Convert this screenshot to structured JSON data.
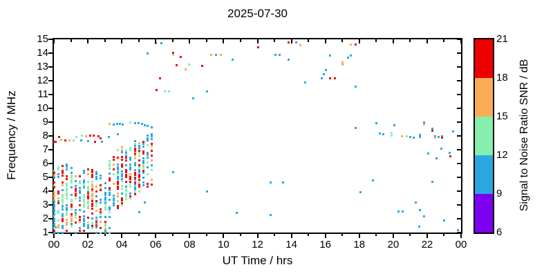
{
  "chart_data": {
    "type": "scatter",
    "title": "2025-07-30",
    "xlabel": "UT Time / hrs",
    "ylabel": "Frequency / MHz",
    "xlim": [
      0,
      24
    ],
    "ylim": [
      1,
      15
    ],
    "grid": false,
    "x_tick_values": [
      0,
      2,
      4,
      6,
      8,
      10,
      12,
      14,
      16,
      18,
      20,
      22,
      24
    ],
    "x_tick_labels": [
      "00",
      "02",
      "04",
      "06",
      "08",
      "10",
      "12",
      "14",
      "16",
      "18",
      "20",
      "22",
      "00"
    ],
    "x_minor_tick_values": [
      1,
      3,
      5,
      7,
      9,
      11,
      13,
      15,
      17,
      19,
      21,
      23
    ],
    "y_tick_values": [
      1,
      2,
      3,
      4,
      5,
      6,
      7,
      8,
      9,
      10,
      11,
      12,
      13,
      14,
      15
    ],
    "colorbar": {
      "label": "Signal to Noise Ratio SNR / dB",
      "tick_values": [
        6,
        9,
        12,
        15,
        18,
        21
      ],
      "segments": [
        {
          "snr_range": [
            6,
            9
          ],
          "color": "#7d00f0",
          "name": "purple"
        },
        {
          "snr_range": [
            9,
            12
          ],
          "color": "#29a8e0",
          "name": "blue"
        },
        {
          "snr_range": [
            12,
            15
          ],
          "color": "#86efae",
          "name": "green"
        },
        {
          "snr_range": [
            15,
            18
          ],
          "color": "#fbac55",
          "name": "orange"
        },
        {
          "snr_range": [
            18,
            21
          ],
          "color": "#ee0000",
          "name": "red"
        }
      ]
    },
    "color_key": {
      "p": "#7d00f0",
      "b": "#29a8e0",
      "g": "#86efae",
      "o": "#fbac55",
      "r": "#ee0000"
    },
    "snr_bin_centers_db": {
      "p": 7.5,
      "b": 10.5,
      "g": 13.5,
      "o": 16.5,
      "r": 19.5
    },
    "marker_px": 3,
    "points": [
      [
        0.0,
        7.6,
        "r"
      ],
      [
        0.1,
        7.6,
        "r"
      ],
      [
        0.3,
        7.95,
        "r"
      ],
      [
        0.42,
        7.75,
        "o"
      ],
      [
        0.65,
        7.72,
        "r"
      ],
      [
        0.9,
        7.7,
        "o"
      ],
      [
        1.14,
        7.7,
        "g"
      ],
      [
        1.3,
        7.95,
        "g"
      ],
      [
        1.6,
        7.72,
        "b"
      ],
      [
        1.63,
        8.05,
        "g"
      ],
      [
        1.87,
        8.0,
        "o"
      ],
      [
        2.0,
        7.65,
        "b"
      ],
      [
        2.12,
        8.05,
        "r"
      ],
      [
        2.32,
        8.05,
        "r"
      ],
      [
        2.4,
        7.6,
        "r"
      ],
      [
        2.6,
        8.0,
        "r"
      ],
      [
        2.72,
        7.85,
        "r"
      ],
      [
        2.82,
        7.62,
        "b"
      ],
      [
        3.2,
        7.95,
        "b"
      ],
      [
        3.75,
        8.15,
        "b"
      ],
      [
        3.25,
        8.9,
        "o"
      ],
      [
        3.5,
        8.85,
        "b"
      ],
      [
        3.7,
        8.9,
        "b"
      ],
      [
        3.88,
        8.9,
        "b"
      ],
      [
        4.05,
        8.85,
        "b"
      ],
      [
        4.5,
        9.0,
        "g"
      ],
      [
        4.78,
        8.95,
        "b"
      ],
      [
        4.97,
        8.95,
        "b"
      ],
      [
        5.17,
        8.9,
        "b"
      ],
      [
        5.35,
        8.8,
        "b"
      ],
      [
        5.5,
        8.75,
        "b"
      ],
      [
        5.75,
        8.65,
        "b"
      ],
      [
        5.75,
        8.15,
        "b"
      ],
      [
        5.5,
        14.0,
        "b"
      ],
      [
        6.0,
        14.75,
        "b"
      ],
      [
        6.3,
        14.75,
        "b"
      ],
      [
        6.05,
        11.35,
        "r"
      ],
      [
        6.25,
        12.2,
        "r"
      ],
      [
        6.5,
        11.25,
        "g"
      ],
      [
        6.75,
        11.25,
        "g"
      ],
      [
        7.0,
        14.05,
        "r"
      ],
      [
        7.0,
        13.88,
        "g"
      ],
      [
        7.2,
        13.15,
        "r"
      ],
      [
        7.45,
        13.75,
        "r"
      ],
      [
        7.75,
        12.85,
        "o"
      ],
      [
        7.95,
        13.2,
        "g"
      ],
      [
        8.2,
        10.75,
        "b"
      ],
      [
        8.7,
        13.1,
        "r"
      ],
      [
        9.0,
        11.25,
        "b"
      ],
      [
        9.25,
        13.9,
        "o"
      ],
      [
        9.55,
        13.9,
        "b"
      ],
      [
        9.8,
        13.9,
        "o"
      ],
      [
        10.5,
        13.55,
        "b"
      ],
      [
        12.0,
        14.45,
        "r"
      ],
      [
        13.05,
        13.9,
        "b"
      ],
      [
        13.3,
        13.9,
        "b"
      ],
      [
        13.8,
        14.8,
        "r"
      ],
      [
        13.8,
        13.55,
        "b"
      ],
      [
        14.25,
        14.8,
        "b"
      ],
      [
        14.5,
        14.6,
        "o"
      ],
      [
        14.8,
        11.9,
        "b"
      ],
      [
        15.75,
        12.2,
        "b"
      ],
      [
        15.9,
        12.5,
        "b"
      ],
      [
        16.0,
        12.8,
        "b"
      ],
      [
        16.25,
        13.85,
        "b"
      ],
      [
        16.25,
        12.2,
        "r"
      ],
      [
        16.55,
        12.2,
        "r"
      ],
      [
        17.0,
        13.35,
        "o"
      ],
      [
        17.0,
        13.18,
        "o"
      ],
      [
        17.3,
        13.7,
        "b"
      ],
      [
        17.5,
        14.65,
        "o"
      ],
      [
        17.5,
        13.85,
        "b"
      ],
      [
        17.75,
        14.65,
        "r"
      ],
      [
        17.75,
        11.6,
        "b"
      ],
      [
        17.75,
        8.6,
        "b"
      ],
      [
        7.0,
        5.4,
        "b"
      ],
      [
        9.0,
        4.0,
        "b"
      ],
      [
        10.75,
        2.45,
        "b"
      ],
      [
        12.75,
        4.65,
        "b"
      ],
      [
        13.5,
        4.65,
        "b"
      ],
      [
        12.75,
        2.3,
        "b"
      ],
      [
        5.0,
        2.5,
        "b"
      ],
      [
        5.35,
        3.2,
        "b"
      ],
      [
        19.0,
        8.95,
        "b"
      ],
      [
        19.2,
        8.2,
        "b"
      ],
      [
        19.4,
        8.15,
        "b"
      ],
      [
        19.9,
        8.25,
        "g"
      ],
      [
        19.9,
        8.05,
        "g"
      ],
      [
        20.05,
        8.8,
        "b"
      ],
      [
        20.5,
        8.0,
        "o"
      ],
      [
        20.8,
        8.0,
        "g"
      ],
      [
        21.0,
        7.95,
        "b"
      ],
      [
        21.2,
        7.9,
        "b"
      ],
      [
        21.55,
        8.1,
        "b"
      ],
      [
        21.55,
        7.95,
        "b"
      ],
      [
        21.8,
        9.0,
        "b"
      ],
      [
        21.8,
        8.85,
        "o"
      ],
      [
        22.3,
        8.55,
        "b"
      ],
      [
        22.3,
        8.42,
        "r"
      ],
      [
        22.45,
        8.0,
        "b"
      ],
      [
        22.45,
        7.9,
        "o"
      ],
      [
        22.65,
        7.95,
        "b"
      ],
      [
        22.85,
        8.0,
        "b"
      ],
      [
        22.85,
        7.88,
        "r"
      ],
      [
        23.5,
        8.35,
        "b"
      ],
      [
        22.05,
        6.75,
        "b"
      ],
      [
        22.8,
        7.1,
        "b"
      ],
      [
        23.3,
        6.8,
        "b"
      ],
      [
        23.35,
        6.55,
        "r"
      ],
      [
        22.55,
        6.4,
        "b"
      ],
      [
        18.05,
        3.95,
        "b"
      ],
      [
        18.8,
        4.8,
        "b"
      ],
      [
        20.3,
        2.55,
        "b"
      ],
      [
        20.55,
        2.55,
        "b"
      ],
      [
        21.3,
        3.2,
        "b"
      ],
      [
        21.55,
        2.65,
        "b"
      ],
      [
        21.5,
        1.45,
        "b"
      ],
      [
        21.8,
        2.2,
        "b"
      ],
      [
        22.3,
        4.7,
        "b"
      ],
      [
        23.0,
        1.9,
        "b"
      ],
      [
        23.8,
        1.2,
        "b"
      ],
      [
        0.08,
        1.4,
        "b"
      ]
    ],
    "dense_columns": {
      "note": "15-min ionogram spread columns 00:00-05:45 UT; each column is [t_hrs, f_min_MHz, f_max_MHz, fill_fraction] of stacked markers with mixed SNR colors",
      "f_step": 0.175,
      "color_weights": {
        "b": 0.42,
        "r": 0.23,
        "g": 0.2,
        "o": 0.15
      },
      "columns": [
        [
          0.0,
          1.5,
          6.0,
          0.8
        ],
        [
          0.25,
          1.4,
          6.0,
          0.8
        ],
        [
          0.5,
          1.5,
          5.9,
          0.75
        ],
        [
          0.75,
          1.6,
          6.0,
          0.8
        ],
        [
          1.0,
          1.5,
          5.9,
          0.75
        ],
        [
          1.25,
          1.6,
          5.5,
          0.65
        ],
        [
          1.5,
          1.8,
          5.8,
          0.6
        ],
        [
          1.75,
          1.5,
          5.6,
          0.7
        ],
        [
          2.0,
          1.4,
          5.9,
          0.75
        ],
        [
          2.25,
          1.2,
          5.6,
          0.7
        ],
        [
          2.5,
          1.4,
          5.5,
          0.7
        ],
        [
          2.75,
          1.3,
          5.3,
          0.55
        ],
        [
          3.0,
          1.3,
          5.8,
          0.5
        ],
        [
          3.25,
          2.0,
          6.2,
          0.6
        ],
        [
          3.5,
          3.0,
          6.7,
          0.65
        ],
        [
          3.75,
          2.8,
          7.0,
          0.7
        ],
        [
          4.0,
          3.0,
          7.3,
          0.75
        ],
        [
          4.25,
          3.3,
          7.4,
          0.75
        ],
        [
          4.5,
          3.5,
          7.6,
          0.7
        ],
        [
          4.75,
          3.8,
          7.7,
          0.75
        ],
        [
          5.0,
          4.0,
          7.8,
          0.7
        ],
        [
          5.25,
          4.3,
          7.95,
          0.65
        ],
        [
          5.5,
          4.2,
          8.05,
          0.7
        ],
        [
          5.75,
          4.5,
          8.1,
          0.45
        ]
      ],
      "low_tail": {
        "t_range": [
          0,
          3.25
        ],
        "t_step": 0.25,
        "f_range": [
          1.0,
          1.55
        ],
        "fill": 0.3
      }
    }
  }
}
